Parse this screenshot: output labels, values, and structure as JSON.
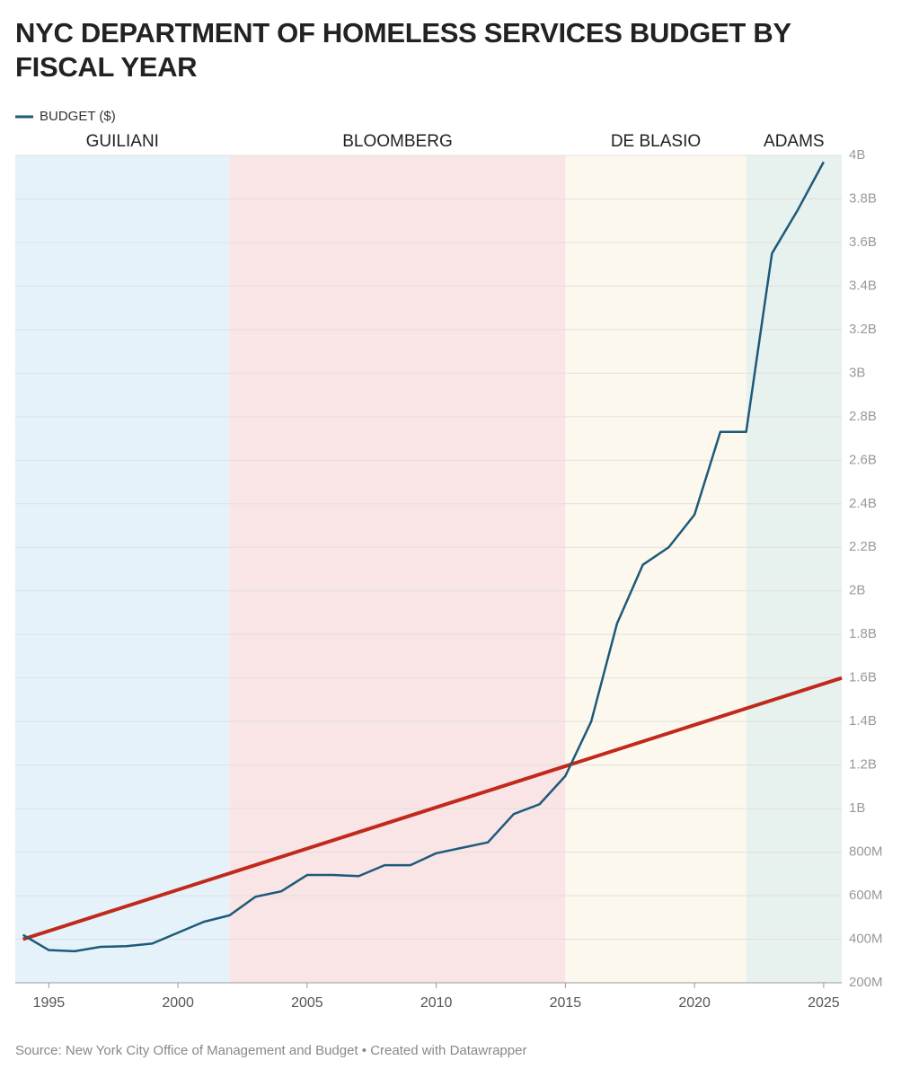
{
  "chart_data": {
    "type": "line",
    "title": "NYC DEPARTMENT OF HOMELESS SERVICES BUDGET BY FISCAL YEAR",
    "source": "Source: New York City Office of Management and Budget • Created with Datawrapper",
    "eras": [
      {
        "label": "GUILIANI",
        "start": 1993.7,
        "end": 2002,
        "color": "#e6f2fa"
      },
      {
        "label": "BLOOMBERG",
        "start": 2002,
        "end": 2015,
        "color": "#f9e4e6"
      },
      {
        "label": "DE BLASIO",
        "start": 2015,
        "end": 2022,
        "color": "#fdf8ee"
      },
      {
        "label": "ADAMS",
        "start": 2022,
        "end": 2025.7,
        "color": "#e7f1ee"
      }
    ],
    "series": [
      {
        "name": "BUDGET ($)",
        "color": "#1d5a7a",
        "x": [
          1994,
          1995,
          1996,
          1997,
          1998,
          1999,
          2000,
          2001,
          2002,
          2003,
          2004,
          2005,
          2006,
          2007,
          2008,
          2009,
          2010,
          2011,
          2012,
          2013,
          2014,
          2015,
          2016,
          2017,
          2018,
          2019,
          2020,
          2021,
          2022,
          2023,
          2024,
          2025
        ],
        "values": [
          420000000,
          350000000,
          345000000,
          365000000,
          368000000,
          380000000,
          430000000,
          480000000,
          510000000,
          595000000,
          620000000,
          695000000,
          695000000,
          690000000,
          740000000,
          740000000,
          795000000,
          820000000,
          845000000,
          975000000,
          1020000000,
          1150000000,
          1400000000,
          1850000000,
          2120000000,
          2200000000,
          2350000000,
          2730000000,
          2730000000,
          3550000000,
          3750000000,
          3970000000
        ]
      },
      {
        "color": "#c0291b",
        "x": [
          1994,
          2025.7
        ],
        "values": [
          400000000,
          1600000000
        ]
      }
    ],
    "xlim": [
      1993.7,
      2025.7
    ],
    "xticks": [
      1995,
      2000,
      2005,
      2010,
      2015,
      2020,
      2025
    ],
    "ylim": [
      200000000,
      4000000000
    ],
    "yticks": [
      {
        "value": 200000000,
        "label": "200M"
      },
      {
        "value": 400000000,
        "label": "400M"
      },
      {
        "value": 600000000,
        "label": "600M"
      },
      {
        "value": 800000000,
        "label": "800M"
      },
      {
        "value": 1000000000,
        "label": "1B"
      },
      {
        "value": 1200000000,
        "label": "1.2B"
      },
      {
        "value": 1400000000,
        "label": "1.4B"
      },
      {
        "value": 1600000000,
        "label": "1.6B"
      },
      {
        "value": 1800000000,
        "label": "1.8B"
      },
      {
        "value": 2000000000,
        "label": "2B"
      },
      {
        "value": 2200000000,
        "label": "2.2B"
      },
      {
        "value": 2400000000,
        "label": "2.4B"
      },
      {
        "value": 2600000000,
        "label": "2.6B"
      },
      {
        "value": 2800000000,
        "label": "2.8B"
      },
      {
        "value": 3000000000,
        "label": "3B"
      },
      {
        "value": 3200000000,
        "label": "3.2B"
      },
      {
        "value": 3400000000,
        "label": "3.4B"
      },
      {
        "value": 3600000000,
        "label": "3.6B"
      },
      {
        "value": 3800000000,
        "label": "3.8B"
      },
      {
        "value": 4000000000,
        "label": "4B"
      }
    ],
    "grid": true
  }
}
